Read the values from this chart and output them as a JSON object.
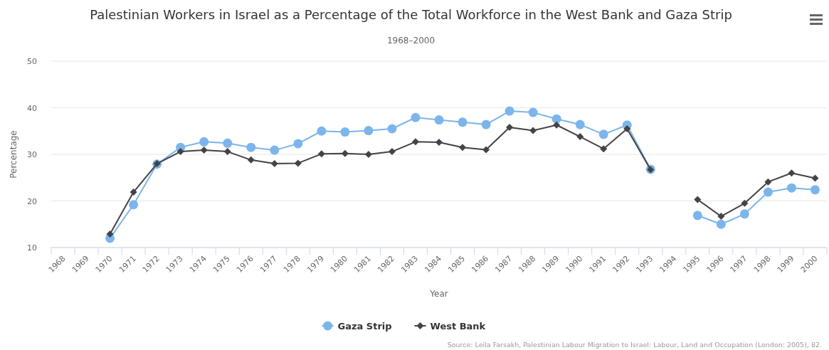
{
  "chart_data": {
    "type": "line",
    "title": "Palestinian Workers in Israel as a Percentage of the Total Workforce in the West Bank and Gaza Strip",
    "subtitle": "1968–2000",
    "xlabel": "Year",
    "ylabel": "Percentage",
    "categories": [
      "1968",
      "1969",
      "1970",
      "1971",
      "1972",
      "1973",
      "1974",
      "1975",
      "1976",
      "1977",
      "1978",
      "1979",
      "1980",
      "1981",
      "1982",
      "1983",
      "1984",
      "1985",
      "1986",
      "1987",
      "1988",
      "1989",
      "1990",
      "1991",
      "1992",
      "1993",
      "1994",
      "1995",
      "1996",
      "1997",
      "1998",
      "1999",
      "2000"
    ],
    "series": [
      {
        "name": "Gaza Strip",
        "color": "#7cb5ec",
        "marker": "circle",
        "values": [
          null,
          null,
          12.0,
          19.2,
          27.9,
          31.5,
          32.7,
          32.4,
          31.5,
          30.9,
          32.3,
          35.0,
          34.8,
          35.1,
          35.5,
          37.9,
          37.4,
          36.9,
          36.4,
          39.3,
          39.0,
          37.6,
          36.4,
          34.3,
          36.3,
          26.8,
          null,
          16.9,
          15.0,
          17.2,
          21.9,
          22.8,
          22.4
        ]
      },
      {
        "name": "West Bank",
        "color": "#434348",
        "marker": "diamond",
        "values": [
          null,
          null,
          12.9,
          21.9,
          28.0,
          30.6,
          30.9,
          30.6,
          28.8,
          28.0,
          28.1,
          30.1,
          30.2,
          30.0,
          30.6,
          32.7,
          32.6,
          31.5,
          31.0,
          35.8,
          35.1,
          36.3,
          33.8,
          31.2,
          35.5,
          26.7,
          null,
          20.3,
          16.7,
          19.5,
          24.1,
          26.0,
          24.9
        ]
      }
    ],
    "ylim": [
      10,
      50
    ],
    "yticks": [
      10,
      20,
      30,
      40,
      50
    ],
    "grid": "y",
    "legend": "bottom",
    "line_style": "solid",
    "annotations": [
      "Source: Leila Farsakh, Palestinian Labour Migration to Israel: Labour, Land and Occupation (London: 2005), 82."
    ]
  }
}
